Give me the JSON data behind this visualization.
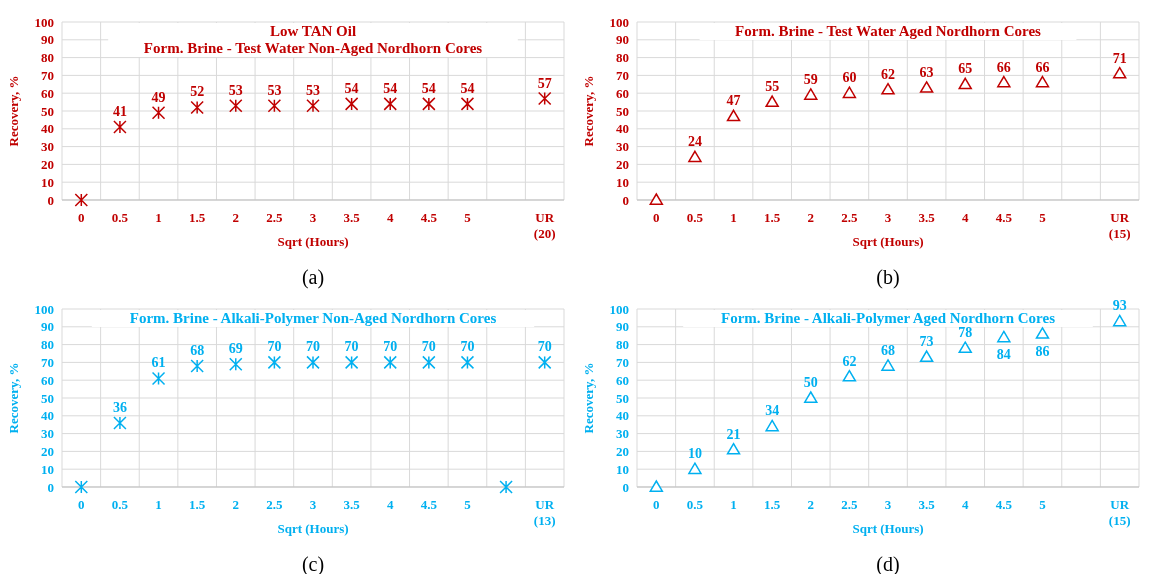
{
  "chart_data": [
    {
      "type": "scatter",
      "title": "Low TAN Oil",
      "subtitle": "Form. Brine - Test Water Non-Aged Nordhorn Cores",
      "xlabel": "Sqrt (Hours)",
      "ylabel": "Recovery, %",
      "annotations": [
        "(a)"
      ],
      "categories": [
        "0",
        "0.5",
        "1",
        "1.5",
        "2",
        "2.5",
        "3",
        "3.5",
        "4",
        "4.5",
        "5",
        null,
        "UR (20)"
      ],
      "series": [
        {
          "color": "#c00000",
          "values": [
            0,
            41,
            49,
            52,
            53,
            53,
            53,
            54,
            54,
            54,
            54,
            null,
            57
          ],
          "value_labels": [
            null,
            "41",
            "49",
            "52",
            "53",
            "53",
            "53",
            "54",
            "54",
            "54",
            "54",
            null,
            "57"
          ]
        }
      ],
      "ylim": [
        0,
        100
      ],
      "yticks": [
        0,
        10,
        20,
        30,
        40,
        50,
        60,
        70,
        80,
        90,
        100
      ],
      "grid": true,
      "marker": "cross"
    },
    {
      "type": "scatter",
      "title": "Form. Brine - Test Water Aged Nordhorn Cores",
      "xlabel": "Sqrt (Hours)",
      "ylabel": "Recovery, %",
      "annotations": [
        "(b)"
      ],
      "categories": [
        "0",
        "0.5",
        "1",
        "1.5",
        "2",
        "2.5",
        "3",
        "3.5",
        "4",
        "4.5",
        "5",
        null,
        "UR (15)"
      ],
      "series": [
        {
          "color": "#c00000",
          "values": [
            0,
            24,
            47,
            55,
            59,
            60,
            62,
            63,
            65,
            66,
            66,
            null,
            71
          ],
          "value_labels": [
            null,
            "24",
            "47",
            "55",
            "59",
            "60",
            "62",
            "63",
            "65",
            "66",
            "66",
            null,
            "71"
          ]
        }
      ],
      "ylim": [
        0,
        100
      ],
      "yticks": [
        0,
        10,
        20,
        30,
        40,
        50,
        60,
        70,
        80,
        90,
        100
      ],
      "grid": true,
      "marker": "triangle"
    },
    {
      "type": "scatter",
      "title": "Form. Brine - Alkali-Polymer Non-Aged Nordhorn Cores",
      "xlabel": "Sqrt (Hours)",
      "ylabel": "Recovery, %",
      "annotations": [
        "(c)"
      ],
      "categories": [
        "0",
        "0.5",
        "1",
        "1.5",
        "2",
        "2.5",
        "3",
        "3.5",
        "4",
        "4.5",
        "5",
        null,
        "UR (13)"
      ],
      "series": [
        {
          "color": "#00b0f0",
          "values": [
            0,
            36,
            61,
            68,
            69,
            70,
            70,
            70,
            70,
            70,
            70,
            0,
            70
          ],
          "value_labels": [
            null,
            "36",
            "61",
            "68",
            "69",
            "70",
            "70",
            "70",
            "70",
            "70",
            "70",
            null,
            "70"
          ]
        }
      ],
      "ylim": [
        0,
        100
      ],
      "yticks": [
        0,
        10,
        20,
        30,
        40,
        50,
        60,
        70,
        80,
        90,
        100
      ],
      "grid": true,
      "marker": "cross"
    },
    {
      "type": "scatter",
      "title": "Form. Brine - Alkali-Polymer Aged Nordhorn Cores",
      "xlabel": "Sqrt (Hours)",
      "ylabel": "Recovery, %",
      "annotations": [
        "(d)"
      ],
      "categories": [
        "0",
        "0.5",
        "1",
        "1.5",
        "2",
        "2.5",
        "3",
        "3.5",
        "4",
        "4.5",
        "5",
        null,
        "UR (15)"
      ],
      "series": [
        {
          "color": "#00b0f0",
          "values": [
            0,
            10,
            21,
            34,
            50,
            62,
            68,
            73,
            78,
            84,
            86,
            null,
            93
          ],
          "value_labels": [
            null,
            "10",
            "21",
            "34",
            "50",
            "62",
            "68",
            "73",
            "78",
            "84",
            "86",
            null,
            "93"
          ]
        }
      ],
      "ylim": [
        0,
        100
      ],
      "yticks": [
        0,
        10,
        20,
        30,
        40,
        50,
        60,
        70,
        80,
        90,
        100
      ],
      "grid": true,
      "marker": "triangle"
    }
  ]
}
